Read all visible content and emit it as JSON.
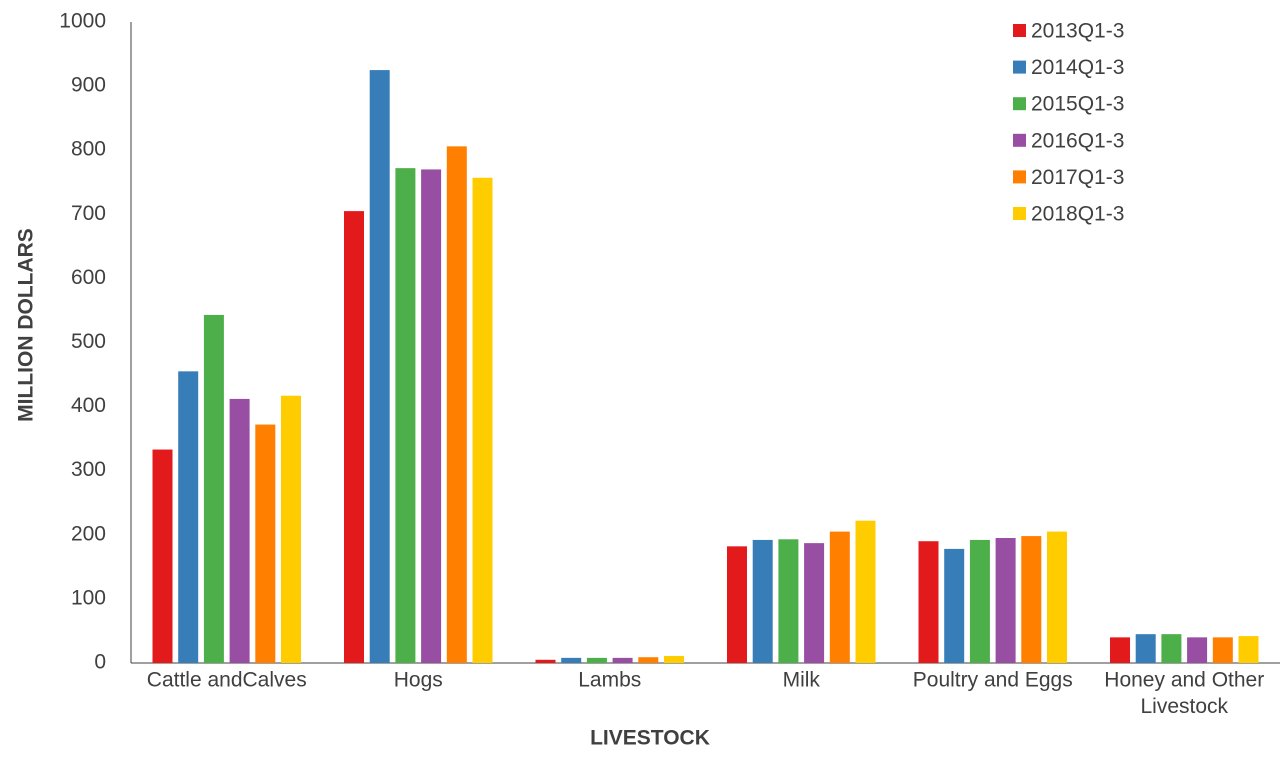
{
  "chart_data": {
    "type": "bar",
    "title": "",
    "xlabel": "LIVESTOCK",
    "ylabel": "MILLION DOLLARS",
    "ylim": [
      0,
      1000
    ],
    "yticks": [
      0,
      100,
      200,
      300,
      400,
      500,
      600,
      700,
      800,
      900,
      1000
    ],
    "grid": false,
    "legend_position": "top-right",
    "categories": [
      [
        "Cattle andCalves"
      ],
      [
        "Hogs"
      ],
      [
        "Lambs"
      ],
      [
        "Milk"
      ],
      [
        "Poultry and Eggs"
      ],
      [
        "Honey and Other",
        "Livestock"
      ]
    ],
    "series": [
      {
        "name": "2013Q1-3",
        "color": "#e31a1c",
        "values": [
          333,
          705,
          5,
          182,
          190,
          40
        ]
      },
      {
        "name": "2014Q1-3",
        "color": "#377eb8",
        "values": [
          455,
          925,
          8,
          192,
          178,
          45
        ]
      },
      {
        "name": "2015Q1-3",
        "color": "#4daf4a",
        "values": [
          543,
          772,
          8,
          193,
          192,
          45
        ]
      },
      {
        "name": "2016Q1-3",
        "color": "#984ea3",
        "values": [
          412,
          770,
          8,
          187,
          195,
          40
        ]
      },
      {
        "name": "2017Q1-3",
        "color": "#ff7f00",
        "values": [
          372,
          806,
          9,
          205,
          198,
          40
        ]
      },
      {
        "name": "2018Q1-3",
        "color": "#ffcc00",
        "values": [
          417,
          757,
          11,
          222,
          205,
          42
        ]
      }
    ]
  }
}
